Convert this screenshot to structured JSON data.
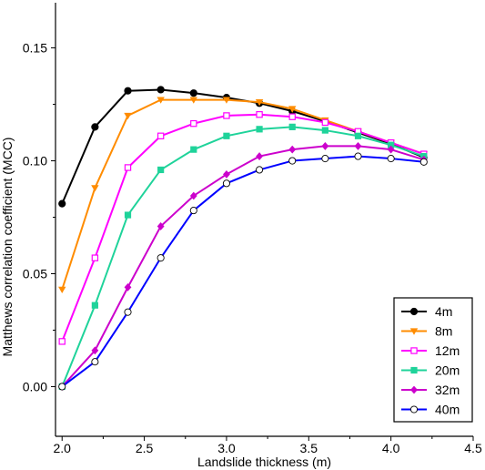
{
  "chart_data": {
    "type": "line",
    "title": "",
    "xlabel": "Landslide thickness (m)",
    "ylabel": "Matthews correlation coefficient (MCC)",
    "xlim": [
      1.96,
      4.5
    ],
    "ylim": [
      -0.022,
      0.17
    ],
    "xticks": [
      2.0,
      2.5,
      3.0,
      3.5,
      4.0,
      4.5
    ],
    "xtick_labels": [
      "2.0",
      "2.5",
      "3.0",
      "3.5",
      "4.0",
      "4.5"
    ],
    "yticks": [
      0.0,
      0.05,
      0.1,
      0.15
    ],
    "ytick_labels": [
      "0.00",
      "0.05",
      "0.10",
      "0.15"
    ],
    "grid": false,
    "legend_position": "bottom-right",
    "x": [
      2.0,
      2.2,
      2.4,
      2.6,
      2.8,
      3.0,
      3.2,
      3.4,
      3.6,
      3.8,
      4.0,
      4.2
    ],
    "series": [
      {
        "name": "4m",
        "color": "#000000",
        "marker": "circle-filled",
        "values": [
          0.081,
          0.115,
          0.131,
          0.1315,
          0.13,
          0.128,
          0.1255,
          0.122,
          0.1175,
          0.1125,
          0.1075,
          0.1015
        ]
      },
      {
        "name": "8m",
        "color": "#ff8c00",
        "marker": "triangle-down-filled",
        "values": [
          0.043,
          0.088,
          0.12,
          0.127,
          0.127,
          0.127,
          0.126,
          0.123,
          0.118,
          0.113,
          0.108,
          0.103
        ]
      },
      {
        "name": "12m",
        "color": "#ff00ff",
        "marker": "square-open",
        "values": [
          0.02,
          0.057,
          0.097,
          0.111,
          0.1165,
          0.12,
          0.1205,
          0.1195,
          0.117,
          0.113,
          0.108,
          0.103
        ]
      },
      {
        "name": "20m",
        "color": "#1fd39a",
        "marker": "square-filled",
        "values": [
          0.0,
          0.036,
          0.076,
          0.096,
          0.105,
          0.111,
          0.114,
          0.115,
          0.1135,
          0.111,
          0.107,
          0.102
        ]
      },
      {
        "name": "32m",
        "color": "#cc00cc",
        "marker": "diamond-filled",
        "values": [
          0.0,
          0.016,
          0.044,
          0.071,
          0.0845,
          0.094,
          0.102,
          0.105,
          0.1065,
          0.1065,
          0.105,
          0.1005
        ]
      },
      {
        "name": "40m",
        "color": "#0000ff",
        "marker": "circle-open",
        "values": [
          0.0,
          0.011,
          0.033,
          0.057,
          0.078,
          0.09,
          0.096,
          0.1,
          0.101,
          0.102,
          0.101,
          0.0995
        ]
      }
    ]
  }
}
